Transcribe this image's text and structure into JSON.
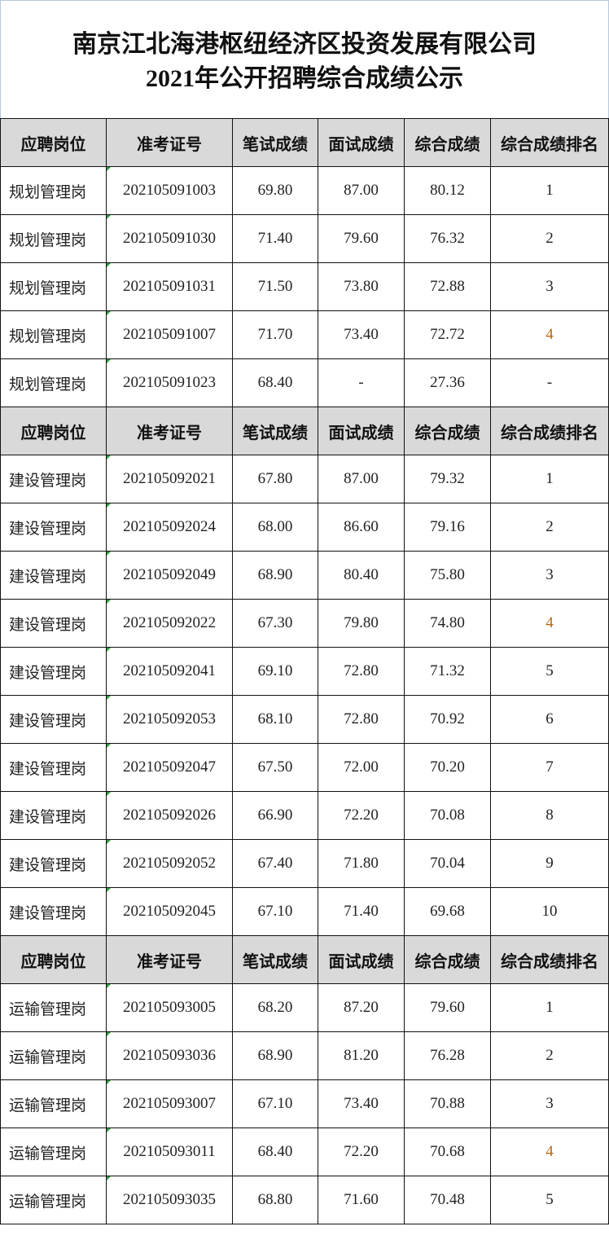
{
  "title": {
    "line1": "南京江北海港枢纽经济区投资发展有限公司",
    "line2": "2021年公开招聘综合成绩公示"
  },
  "headers": [
    "应聘岗位",
    "准考证号",
    "笔试成绩",
    "面试成绩",
    "综合成绩",
    "综合成绩排名"
  ],
  "groups": [
    {
      "rows": [
        [
          "规划管理岗",
          "202105091003",
          "69.80",
          "87.00",
          "80.12",
          "1"
        ],
        [
          "规划管理岗",
          "202105091030",
          "71.40",
          "79.60",
          "76.32",
          "2"
        ],
        [
          "规划管理岗",
          "202105091031",
          "71.50",
          "73.80",
          "72.88",
          "3"
        ],
        [
          "规划管理岗",
          "202105091007",
          "71.70",
          "73.40",
          "72.72",
          "4"
        ],
        [
          "规划管理岗",
          "202105091023",
          "68.40",
          "-",
          "27.36",
          "-"
        ]
      ]
    },
    {
      "rows": [
        [
          "建设管理岗",
          "202105092021",
          "67.80",
          "87.00",
          "79.32",
          "1"
        ],
        [
          "建设管理岗",
          "202105092024",
          "68.00",
          "86.60",
          "79.16",
          "2"
        ],
        [
          "建设管理岗",
          "202105092049",
          "68.90",
          "80.40",
          "75.80",
          "3"
        ],
        [
          "建设管理岗",
          "202105092022",
          "67.30",
          "79.80",
          "74.80",
          "4"
        ],
        [
          "建设管理岗",
          "202105092041",
          "69.10",
          "72.80",
          "71.32",
          "5"
        ],
        [
          "建设管理岗",
          "202105092053",
          "68.10",
          "72.80",
          "70.92",
          "6"
        ],
        [
          "建设管理岗",
          "202105092047",
          "67.50",
          "72.00",
          "70.20",
          "7"
        ],
        [
          "建设管理岗",
          "202105092026",
          "66.90",
          "72.20",
          "70.08",
          "8"
        ],
        [
          "建设管理岗",
          "202105092052",
          "67.40",
          "71.80",
          "70.04",
          "9"
        ],
        [
          "建设管理岗",
          "202105092045",
          "67.10",
          "71.40",
          "69.68",
          "10"
        ]
      ]
    },
    {
      "rows": [
        [
          "运输管理岗",
          "202105093005",
          "68.20",
          "87.20",
          "79.60",
          "1"
        ],
        [
          "运输管理岗",
          "202105093036",
          "68.90",
          "81.20",
          "76.28",
          "2"
        ],
        [
          "运输管理岗",
          "202105093007",
          "67.10",
          "73.40",
          "70.88",
          "3"
        ],
        [
          "运输管理岗",
          "202105093011",
          "68.40",
          "72.20",
          "70.68",
          "4"
        ],
        [
          "运输管理岗",
          "202105093035",
          "68.80",
          "71.60",
          "70.48",
          "5"
        ]
      ]
    }
  ]
}
